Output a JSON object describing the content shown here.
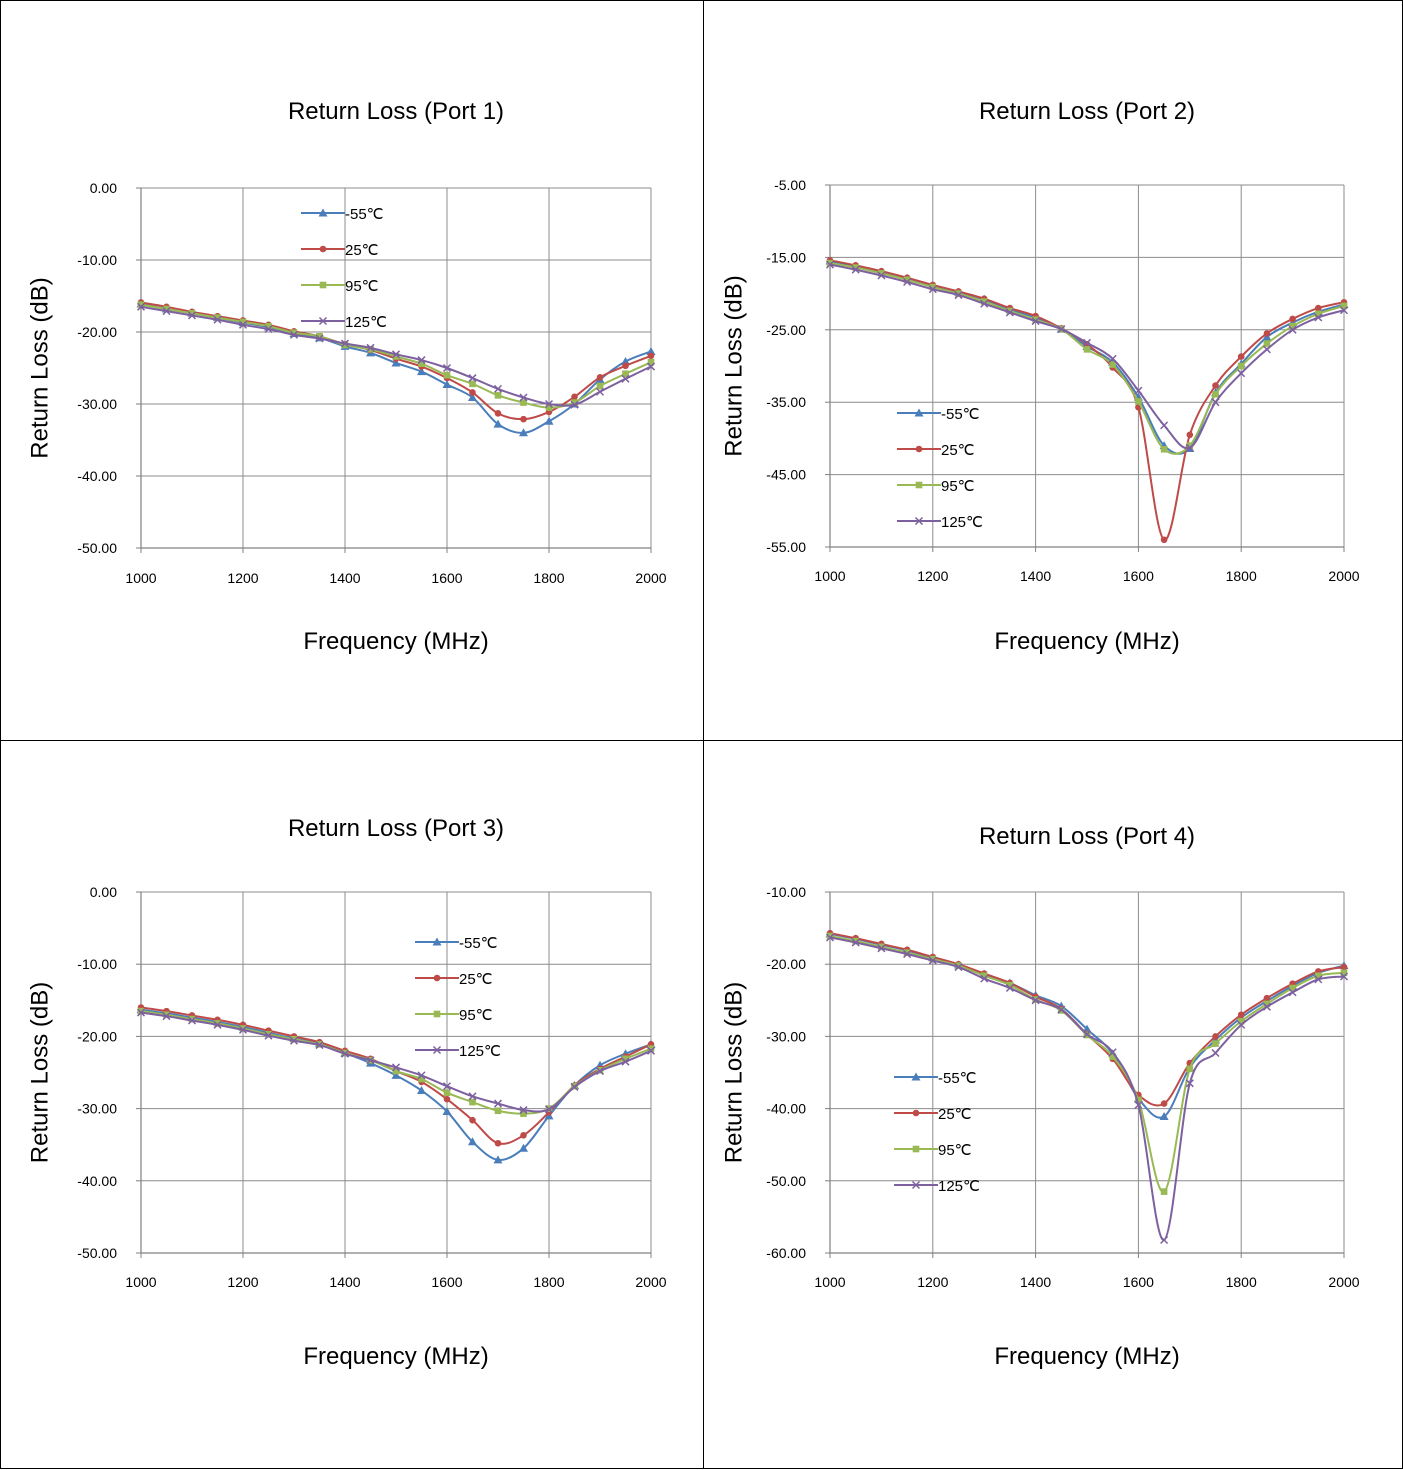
{
  "colors": {
    "-55℃": "#4a7ebb",
    "25℃": "#be4b48",
    "95℃": "#98b954",
    "125℃": "#7d60a0"
  },
  "chart_data": [
    {
      "type": "line",
      "title": "Return Loss (Port 1)",
      "xlabel": "Frequency (MHz)",
      "ylabel": "Return Loss (dB)",
      "xlim": [
        1000,
        2000
      ],
      "ylim": [
        -50,
        0
      ],
      "xticks": [
        1000,
        1200,
        1400,
        1600,
        1800,
        2000
      ],
      "yticks": [
        0,
        -10,
        -20,
        -30,
        -40,
        -50
      ],
      "ytick_labels": [
        "0.00",
        "-10.00",
        "-20.00",
        "-30.00",
        "-40.00",
        "-50.00"
      ],
      "grid": true,
      "legend_position": "top-center",
      "x": [
        1000,
        1050,
        1100,
        1150,
        1200,
        1250,
        1300,
        1350,
        1400,
        1450,
        1500,
        1550,
        1600,
        1650,
        1700,
        1750,
        1800,
        1850,
        1900,
        1950,
        2000
      ],
      "series": [
        {
          "name": "-55℃",
          "marker": "triangle",
          "values": [
            -16.1,
            -16.8,
            -17.4,
            -18.0,
            -18.7,
            -19.3,
            -20.2,
            -20.8,
            -22.0,
            -22.9,
            -24.3,
            -25.5,
            -27.3,
            -29.1,
            -32.8,
            -34.0,
            -32.4,
            -30.0,
            -26.6,
            -24.1,
            -22.7
          ]
        },
        {
          "name": "25℃",
          "marker": "circle",
          "values": [
            -15.9,
            -16.5,
            -17.2,
            -17.8,
            -18.4,
            -19.0,
            -19.9,
            -20.6,
            -21.7,
            -22.5,
            -23.7,
            -24.8,
            -26.4,
            -28.4,
            -31.3,
            -32.1,
            -31.1,
            -29.0,
            -26.3,
            -24.7,
            -23.3
          ]
        },
        {
          "name": "95℃",
          "marker": "square",
          "values": [
            -16.2,
            -16.8,
            -17.4,
            -18.0,
            -18.6,
            -19.2,
            -20.1,
            -20.6,
            -21.8,
            -22.4,
            -23.4,
            -24.4,
            -26.0,
            -27.2,
            -28.8,
            -29.8,
            -30.5,
            -29.8,
            -27.5,
            -25.8,
            -24.2
          ]
        },
        {
          "name": "125℃",
          "marker": "cross",
          "values": [
            -16.5,
            -17.1,
            -17.7,
            -18.3,
            -19.0,
            -19.6,
            -20.4,
            -20.9,
            -21.6,
            -22.2,
            -23.1,
            -23.9,
            -25.0,
            -26.4,
            -27.9,
            -29.1,
            -30.0,
            -30.1,
            -28.3,
            -26.5,
            -24.8
          ]
        }
      ]
    },
    {
      "type": "line",
      "title": "Return Loss (Port 2)",
      "xlabel": "Frequency (MHz)",
      "ylabel": "Return Loss (dB)",
      "xlim": [
        1000,
        2000
      ],
      "ylim": [
        -55,
        -5
      ],
      "xticks": [
        1000,
        1200,
        1400,
        1600,
        1800,
        2000
      ],
      "yticks": [
        -5,
        -15,
        -25,
        -35,
        -45,
        -55
      ],
      "ytick_labels": [
        "-5.00",
        "-15.00",
        "-25.00",
        "-35.00",
        "-45.00",
        "-55.00"
      ],
      "grid": true,
      "legend_position": "bottom-left",
      "x": [
        1000,
        1050,
        1100,
        1150,
        1200,
        1250,
        1300,
        1350,
        1400,
        1450,
        1500,
        1550,
        1600,
        1650,
        1700,
        1750,
        1800,
        1850,
        1900,
        1950,
        2000
      ],
      "series": [
        {
          "name": "-55℃",
          "marker": "triangle",
          "values": [
            -15.5,
            -16.2,
            -17.0,
            -17.9,
            -18.9,
            -19.8,
            -20.8,
            -22.2,
            -23.3,
            -24.9,
            -27.3,
            -29.5,
            -34.3,
            -41.0,
            -41.4,
            -33.7,
            -29.7,
            -26.0,
            -24.0,
            -22.5,
            -21.5
          ]
        },
        {
          "name": "25℃",
          "marker": "circle",
          "values": [
            -15.4,
            -16.1,
            -16.9,
            -17.8,
            -18.8,
            -19.7,
            -20.7,
            -22.0,
            -23.1,
            -24.8,
            -27.0,
            -30.2,
            -35.7,
            -54.0,
            -39.5,
            -32.7,
            -28.7,
            -25.5,
            -23.5,
            -22.0,
            -21.2
          ]
        },
        {
          "name": "95℃",
          "marker": "square",
          "values": [
            -15.8,
            -16.4,
            -17.2,
            -18.1,
            -19.1,
            -20.0,
            -21.1,
            -22.4,
            -23.6,
            -24.9,
            -27.7,
            -29.8,
            -34.9,
            -41.5,
            -41.0,
            -33.9,
            -30.0,
            -26.9,
            -24.5,
            -22.8,
            -21.7
          ]
        },
        {
          "name": "125℃",
          "marker": "cross",
          "values": [
            -16.0,
            -16.7,
            -17.5,
            -18.4,
            -19.4,
            -20.2,
            -21.4,
            -22.6,
            -23.8,
            -24.9,
            -26.8,
            -29.0,
            -33.4,
            -38.2,
            -41.3,
            -35.0,
            -31.0,
            -27.7,
            -25.0,
            -23.3,
            -22.3
          ]
        }
      ]
    },
    {
      "type": "line",
      "title": "Return Loss (Port 3)",
      "xlabel": "Frequency (MHz)",
      "ylabel": "Return Loss (dB)",
      "xlim": [
        1000,
        2000
      ],
      "ylim": [
        -50,
        0
      ],
      "xticks": [
        1000,
        1200,
        1400,
        1600,
        1800,
        2000
      ],
      "yticks": [
        0,
        -10,
        -20,
        -30,
        -40,
        -50
      ],
      "ytick_labels": [
        "0.00",
        "-10.00",
        "-20.00",
        "-30.00",
        "-40.00",
        "-50.00"
      ],
      "grid": true,
      "legend_position": "top-right",
      "x": [
        1000,
        1050,
        1100,
        1150,
        1200,
        1250,
        1300,
        1350,
        1400,
        1450,
        1500,
        1550,
        1600,
        1650,
        1700,
        1750,
        1800,
        1850,
        1900,
        1950,
        2000
      ],
      "series": [
        {
          "name": "-55℃",
          "marker": "triangle",
          "values": [
            -16.3,
            -16.8,
            -17.4,
            -18.0,
            -18.7,
            -19.5,
            -20.3,
            -21.0,
            -22.3,
            -23.7,
            -25.4,
            -27.5,
            -30.4,
            -34.6,
            -37.1,
            -35.5,
            -31.0,
            -26.8,
            -24.0,
            -22.4,
            -21.1
          ]
        },
        {
          "name": "25℃",
          "marker": "circle",
          "values": [
            -16.0,
            -16.5,
            -17.1,
            -17.7,
            -18.4,
            -19.2,
            -20.0,
            -20.8,
            -22.0,
            -23.1,
            -24.8,
            -26.3,
            -28.7,
            -31.6,
            -34.8,
            -33.7,
            -30.5,
            -26.8,
            -24.5,
            -22.8,
            -21.1
          ]
        },
        {
          "name": "95℃",
          "marker": "square",
          "values": [
            -16.5,
            -17.0,
            -17.6,
            -18.2,
            -18.9,
            -19.7,
            -20.4,
            -21.1,
            -22.3,
            -23.3,
            -24.8,
            -25.9,
            -27.8,
            -29.1,
            -30.3,
            -30.7,
            -30.0,
            -26.9,
            -24.7,
            -23.1,
            -21.7
          ]
        },
        {
          "name": "125℃",
          "marker": "cross",
          "values": [
            -16.7,
            -17.2,
            -17.8,
            -18.4,
            -19.1,
            -19.9,
            -20.6,
            -21.2,
            -22.4,
            -23.3,
            -24.3,
            -25.4,
            -26.9,
            -28.3,
            -29.3,
            -30.2,
            -30.1,
            -27.0,
            -24.8,
            -23.5,
            -22.0
          ]
        }
      ]
    },
    {
      "type": "line",
      "title": "Return Loss (Port 4)",
      "xlabel": "Frequency (MHz)",
      "ylabel": "Return Loss (dB)",
      "xlim": [
        1000,
        2000
      ],
      "ylim": [
        -60,
        -10
      ],
      "xticks": [
        1000,
        1200,
        1400,
        1600,
        1800,
        2000
      ],
      "yticks": [
        -10,
        -20,
        -30,
        -40,
        -50,
        -60
      ],
      "ytick_labels": [
        "-10.00",
        "-20.00",
        "-30.00",
        "-40.00",
        "-50.00",
        "-60.00"
      ],
      "grid": true,
      "legend_position": "bottom-left",
      "x": [
        1000,
        1050,
        1100,
        1150,
        1200,
        1250,
        1300,
        1350,
        1400,
        1450,
        1500,
        1550,
        1600,
        1650,
        1700,
        1750,
        1800,
        1850,
        1900,
        1950,
        2000
      ],
      "series": [
        {
          "name": "-55℃",
          "marker": "triangle",
          "values": [
            -15.8,
            -16.5,
            -17.3,
            -18.1,
            -19.1,
            -20.1,
            -21.4,
            -22.6,
            -24.3,
            -25.8,
            -29.0,
            -32.4,
            -38.6,
            -41.1,
            -34.3,
            -30.5,
            -27.4,
            -25.1,
            -23.0,
            -21.2,
            -20.2
          ]
        },
        {
          "name": "25℃",
          "marker": "circle",
          "values": [
            -15.7,
            -16.4,
            -17.2,
            -18.0,
            -19.0,
            -20.0,
            -21.3,
            -22.6,
            -24.5,
            -26.2,
            -29.7,
            -33.1,
            -38.1,
            -39.3,
            -33.7,
            -30.0,
            -27.0,
            -24.7,
            -22.7,
            -21.0,
            -20.4
          ]
        },
        {
          "name": "95℃",
          "marker": "square",
          "values": [
            -16.1,
            -16.8,
            -17.6,
            -18.4,
            -19.3,
            -20.2,
            -21.6,
            -22.9,
            -24.9,
            -26.4,
            -29.8,
            -32.8,
            -38.8,
            -51.5,
            -34.5,
            -31.0,
            -27.9,
            -25.5,
            -23.3,
            -21.6,
            -21.2
          ]
        },
        {
          "name": "125℃",
          "marker": "cross",
          "values": [
            -16.3,
            -17.0,
            -17.8,
            -18.6,
            -19.5,
            -20.4,
            -22.0,
            -23.3,
            -25.0,
            -26.3,
            -29.7,
            -32.2,
            -39.5,
            -58.2,
            -36.5,
            -32.3,
            -28.4,
            -25.9,
            -23.9,
            -22.1,
            -21.7
          ]
        }
      ]
    }
  ]
}
